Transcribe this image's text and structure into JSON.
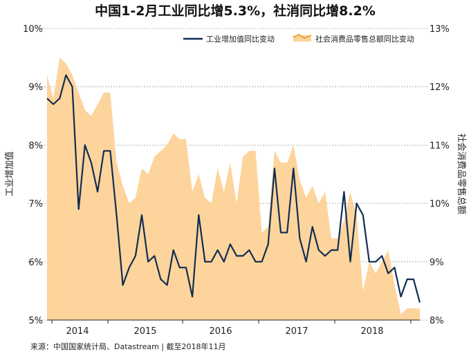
{
  "colors": {
    "industry_line": "#0f2d52",
    "retail_area": "#fdd49b",
    "retail_legend_line": "#e8a23a",
    "grid": "#9a9a9a",
    "axis": "#222222"
  },
  "chart_data": {
    "type": "line",
    "title": "中国1-2月工业同比增5.3%，社消同比增8.2%",
    "source": "来源：中国国家统计局、Datastream | 截至2018年11月",
    "ylabel_left": "工业增加值",
    "ylabel_right": "社会消费品零售总额",
    "y_left_range": [
      5,
      10
    ],
    "y_right_range": [
      8,
      13
    ],
    "y_left_ticks": [
      "5%",
      "6%",
      "7%",
      "8%",
      "9%",
      "10%"
    ],
    "y_right_ticks": [
      "8%",
      "9%",
      "10%",
      "11%",
      "12%",
      "13%"
    ],
    "x_tick_labels": [
      "2014",
      "2015",
      "2016",
      "2017",
      "2018"
    ],
    "grid": true,
    "legend_position": "top-right",
    "series": [
      {
        "name": "工业增加值同比变动",
        "kind": "line",
        "axis": "left",
        "values": [
          8.8,
          8.7,
          8.8,
          9.2,
          9.0,
          6.9,
          8.0,
          7.7,
          7.2,
          7.9,
          7.9,
          6.8,
          5.6,
          5.9,
          6.1,
          6.8,
          6.0,
          6.1,
          5.7,
          5.6,
          6.2,
          5.9,
          5.9,
          5.4,
          6.8,
          6.0,
          6.0,
          6.2,
          6.0,
          6.3,
          6.1,
          6.1,
          6.2,
          6.0,
          6.0,
          6.3,
          7.6,
          6.5,
          6.5,
          7.6,
          6.4,
          6.0,
          6.6,
          6.2,
          6.1,
          6.2,
          6.2,
          7.2,
          6.0,
          7.0,
          6.8,
          6.0,
          6.0,
          6.1,
          5.8,
          5.9,
          5.4,
          5.7,
          5.7,
          5.3
        ]
      },
      {
        "name": "社会消费品零售总额同比变动",
        "kind": "area",
        "axis": "right",
        "values": [
          12.2,
          11.8,
          12.5,
          12.4,
          12.2,
          11.9,
          11.6,
          11.5,
          11.7,
          11.9,
          11.9,
          10.7,
          10.3,
          10.0,
          10.1,
          10.6,
          10.5,
          10.8,
          10.9,
          11.0,
          11.2,
          11.1,
          11.1,
          10.2,
          10.5,
          10.1,
          10.0,
          10.6,
          10.2,
          10.7,
          10.0,
          10.8,
          10.9,
          10.9,
          9.5,
          9.6,
          10.9,
          10.7,
          10.7,
          11.0,
          10.4,
          10.1,
          10.3,
          10.0,
          10.2,
          9.4,
          9.4,
          9.7,
          10.2,
          9.8,
          8.5,
          9.0,
          8.8,
          9.0,
          9.2,
          8.6,
          8.1,
          8.2,
          8.2,
          8.2
        ]
      }
    ]
  }
}
